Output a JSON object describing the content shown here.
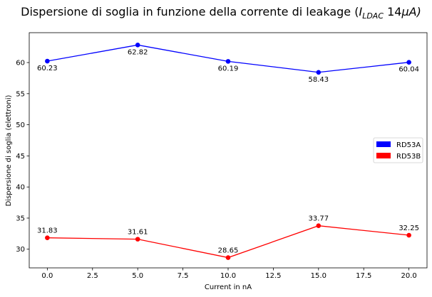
{
  "chart_data": {
    "type": "line",
    "title_main": "Dispersione di soglia in funzione della corrente di leakage (",
    "title_var": "I",
    "title_sub": "LDAC",
    "title_num": " 14",
    "title_mu": "μ",
    "title_unit": "A)",
    "xlabel": "Current in nA",
    "ylabel": "Dispersione di soglia (elettroni)",
    "xlim": [
      -1,
      21
    ],
    "ylim": [
      27,
      64.8
    ],
    "xticks": [
      0.0,
      2.5,
      5.0,
      7.5,
      10.0,
      12.5,
      15.0,
      17.5,
      20.0
    ],
    "xtick_labels": [
      "0.0",
      "2.5",
      "5.0",
      "7.5",
      "10.0",
      "12.5",
      "15.0",
      "17.5",
      "20.0"
    ],
    "yticks": [
      30,
      35,
      40,
      45,
      50,
      55,
      60
    ],
    "ytick_labels": [
      "30",
      "35",
      "40",
      "45",
      "50",
      "55",
      "60"
    ],
    "grid": false,
    "legend_position": "center-right",
    "series": [
      {
        "name": "RD53A",
        "color": "#0000ff",
        "label_side": "below",
        "x": [
          0,
          5,
          10,
          15,
          20
        ],
        "values": [
          60.23,
          62.82,
          60.19,
          58.43,
          60.04
        ],
        "labels": [
          "60.23",
          "62.82",
          "60.19",
          "58.43",
          "60.04"
        ]
      },
      {
        "name": "RD53B",
        "color": "#ff0000",
        "label_side": "above",
        "x": [
          0,
          5,
          10,
          15,
          20
        ],
        "values": [
          31.83,
          31.61,
          28.65,
          33.77,
          32.25
        ],
        "labels": [
          "31.83",
          "31.61",
          "28.65",
          "33.77",
          "32.25"
        ]
      }
    ]
  }
}
